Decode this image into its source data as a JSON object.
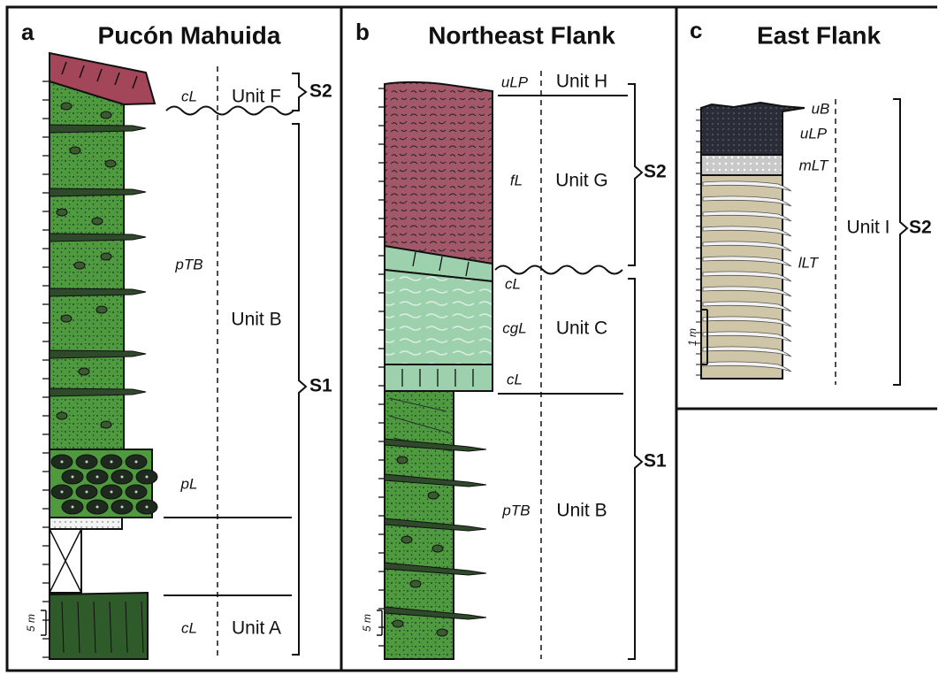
{
  "panels": [
    {
      "letter": "a",
      "title": "Pucón Mahuida",
      "scale": "5 m",
      "lithology": [
        "cL",
        "pTB",
        "pL",
        "cL"
      ],
      "units": [
        "Unit F",
        "Unit B",
        "Unit A"
      ],
      "sequences": [
        "S2",
        "S1"
      ]
    },
    {
      "letter": "b",
      "title": "Northeast Flank",
      "scale": "5 m",
      "lithology": [
        "uLP",
        "fL",
        "cL",
        "cgL",
        "cL",
        "pTB"
      ],
      "units": [
        "Unit H",
        "Unit G",
        "Unit C",
        "Unit B"
      ],
      "sequences": [
        "S2",
        "S1"
      ]
    },
    {
      "letter": "c",
      "title": "East Flank",
      "scale": "1 m",
      "lithology": [
        "uB",
        "uLP",
        "mLT",
        "lLT"
      ],
      "units": [
        "Unit I"
      ],
      "sequences": [
        "S2"
      ]
    }
  ]
}
